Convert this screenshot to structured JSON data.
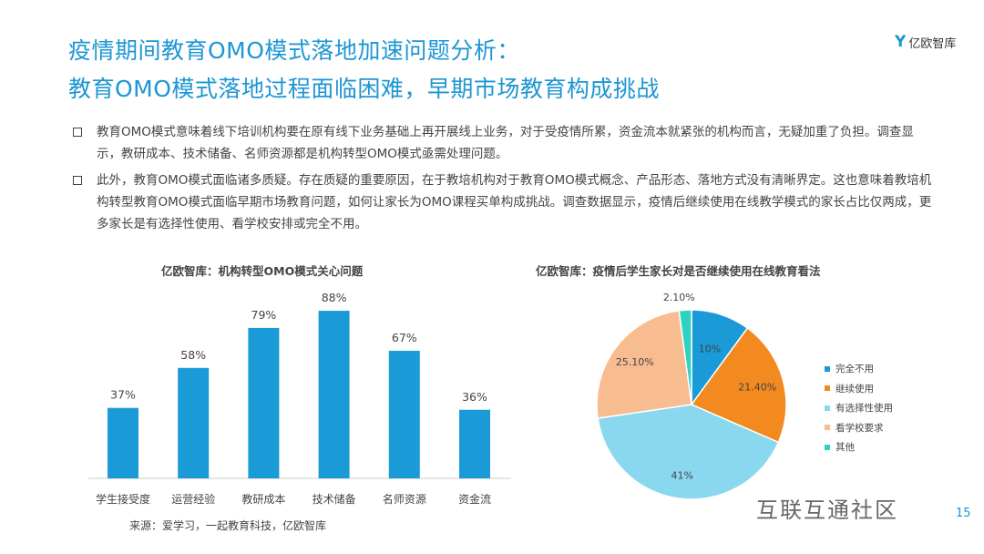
{
  "header": {
    "title_line1": "疫情期间教育OMO模式落地加速问题分析：",
    "title_line2": "教育OMO模式落地过程面临困难，早期市场教育构成挑战",
    "logo_text": "亿欧智库",
    "logo_mark": "Y"
  },
  "paragraphs": [
    "教育OMO模式意味着线下培训机构要在原有线下业务基础上再开展线上业务，对于受疫情所累，资金流本就紧张的机构而言，无疑加重了负担。调查显示，教研成本、技术储备、名师资源都是机构转型OMO模式亟需处理问题。",
    "此外，教育OMO模式面临诸多质疑。存在质疑的重要原因，在于教培机构对于教育OMO模式概念、产品形态、落地方式没有清晰界定。这也意味着教培机构转型教育OMO模式面临早期市场教育问题，如何让家长为OMO课程买单构成挑战。调查数据显示，疫情后继续使用在线教学模式的家长占比仅两成，更多家长是有选择性使用、看学校安排或完全不用。"
  ],
  "chart_data": [
    {
      "type": "bar",
      "title": "亿欧智库：机构转型OMO模式关心问题",
      "categories": [
        "学生接受度",
        "运营经验",
        "教研成本",
        "技术储备",
        "名师资源",
        "资金流"
      ],
      "values": [
        37,
        58,
        79,
        88,
        67,
        36
      ],
      "labels": [
        "37%",
        "58%",
        "79%",
        "88%",
        "67%",
        "36%"
      ],
      "ylim": [
        0,
        100
      ],
      "color": "#1a9bd7",
      "source": "来源：爱学习，一起教育科技，亿欧智库"
    },
    {
      "type": "pie",
      "title": "亿欧智库：疫情后学生家长对是否继续使用在线教育看法",
      "categories": [
        "完全不用",
        "继续使用",
        "有选择性使用",
        "看学校要求",
        "其他"
      ],
      "values": [
        10,
        21.4,
        41,
        25.1,
        2.1
      ],
      "labels": [
        "10%",
        "21.40%",
        "41%",
        "25.10%",
        "2.10%"
      ],
      "colors": [
        "#1a9bd7",
        "#f28a1f",
        "#8ad8ef",
        "#f7bd90",
        "#2fd1c1"
      ],
      "legend": "right"
    }
  ],
  "footer": {
    "watermark": "互联互通社区",
    "page": "15"
  }
}
